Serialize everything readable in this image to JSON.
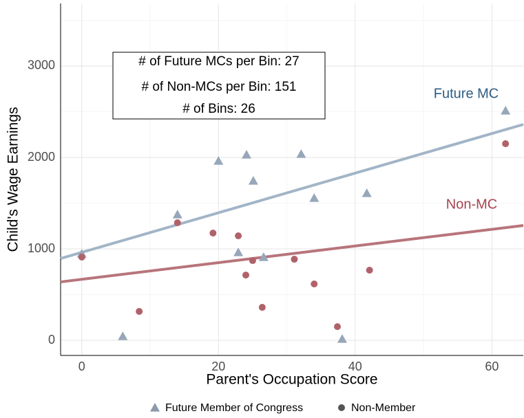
{
  "chart_data": {
    "type": "scatter",
    "xlabel": "Parent's Occupation Score",
    "ylabel": "Child's Wage Earnings",
    "xlim": [
      -3.1,
      64.6
    ],
    "ylim": [
      -165,
      3684
    ],
    "xticks": [
      0,
      20,
      40,
      60
    ],
    "yticks": [
      0,
      1000,
      2000,
      3000
    ],
    "xminor": [
      10,
      30,
      50
    ],
    "yminor": [
      500,
      1500,
      2500,
      3500
    ],
    "grid": true,
    "annotations": [
      "# of Future MCs per Bin: 27",
      "# of Non-MCs per Bin: 151",
      "# of Bins: 26"
    ],
    "series": [
      {
        "name": "Future Member of Congress",
        "marker": "triangle",
        "color": "#97a7b9",
        "x": [
          0,
          6.0,
          14,
          20,
          22.9,
          24.1,
          25.1,
          26.6,
          32.1,
          34.0,
          38.1,
          41.7,
          62.0
        ],
        "values": [
          947,
          45,
          1376,
          1962,
          962,
          2030,
          1744,
          910,
          2037,
          1556,
          15,
          1609,
          2511
        ]
      },
      {
        "name": "Non-Member",
        "marker": "circle",
        "color": "#b0626a",
        "x": [
          0,
          8.4,
          14,
          19.2,
          22.9,
          24.0,
          25.0,
          26.4,
          31.1,
          34.0,
          37.4,
          42.1,
          62.0
        ],
        "values": [
          910,
          316,
          1286,
          1173,
          1143,
          714,
          872,
          361,
          887,
          617,
          150,
          767,
          2150
        ]
      }
    ],
    "fit_lines": [
      {
        "name": "Future MC",
        "color": "#a2b5c7",
        "label_color": "#2f5c82",
        "x": [
          -3.1,
          64.6
        ],
        "values": [
          895,
          2361
        ]
      },
      {
        "name": "Non-MC",
        "color": "#b8747b",
        "label_color": "#a8434f",
        "x": [
          -3.1,
          64.6
        ],
        "values": [
          639,
          1256
        ]
      }
    ]
  }
}
